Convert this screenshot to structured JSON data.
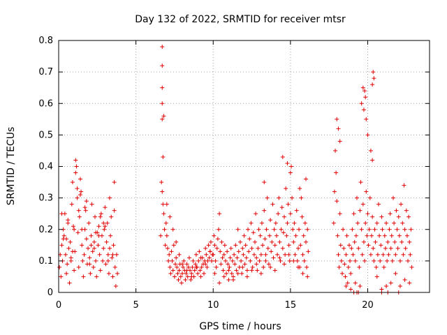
{
  "chart_data": {
    "type": "scatter",
    "title": "Day 132 of 2022, SRMTID for receiver mtsr",
    "xlabel": "GPS time / hours",
    "ylabel": "SRMTID / TECUs",
    "xlim": [
      0,
      24
    ],
    "ylim": [
      0,
      0.8
    ],
    "xticks": [
      0,
      5,
      10,
      15,
      20
    ],
    "yticks": [
      0,
      0.1,
      0.2,
      0.3,
      0.4,
      0.5,
      0.6,
      0.7,
      0.8
    ],
    "grid": true,
    "marker": "+",
    "color": "#e00000",
    "series": [
      {
        "name": "SRMTID",
        "x": [
          0.05,
          0.1,
          0.15,
          0.2,
          0.25,
          0.3,
          0.35,
          0.4,
          0.45,
          0.5,
          0.55,
          0.6,
          0.65,
          0.7,
          0.75,
          0.8,
          0.85,
          0.9,
          0.95,
          1.0,
          1.05,
          1.1,
          1.15,
          1.2,
          1.25,
          1.3,
          1.35,
          1.4,
          1.45,
          1.5,
          1.55,
          1.6,
          1.65,
          1.7,
          1.75,
          1.8,
          1.85,
          1.9,
          1.95,
          2.0,
          2.05,
          2.1,
          2.15,
          2.2,
          2.25,
          2.3,
          2.35,
          2.4,
          2.45,
          2.5,
          2.55,
          2.6,
          2.65,
          2.7,
          2.75,
          2.8,
          2.85,
          2.9,
          2.95,
          3.0,
          3.05,
          3.1,
          3.15,
          3.2,
          3.25,
          3.3,
          3.35,
          3.4,
          3.45,
          3.5,
          3.55,
          3.6,
          3.65,
          3.7,
          3.75,
          3.8,
          0.3,
          0.6,
          0.9,
          1.1,
          1.2,
          1.3,
          1.5,
          1.8,
          2.1,
          2.4,
          2.7,
          3.0,
          3.3,
          3.5,
          0.2,
          0.5,
          0.8,
          1.0,
          1.4,
          1.7,
          2.0,
          2.3,
          2.6,
          2.9,
          3.2,
          3.6,
          6.6,
          6.65,
          6.7,
          6.75,
          6.8,
          6.85,
          6.9,
          6.95,
          7.0,
          7.05,
          7.1,
          7.15,
          7.2,
          7.25,
          7.3,
          7.35,
          7.4,
          7.45,
          7.5,
          7.55,
          7.6,
          7.65,
          7.7,
          7.75,
          7.8,
          7.85,
          7.9,
          7.95,
          8.0,
          8.05,
          8.1,
          8.15,
          8.2,
          8.25,
          8.3,
          8.35,
          8.4,
          8.45,
          8.5,
          8.55,
          8.6,
          8.65,
          8.7,
          8.75,
          8.8,
          8.85,
          8.9,
          8.95,
          9.0,
          9.05,
          9.1,
          9.15,
          9.2,
          9.25,
          9.3,
          9.35,
          9.4,
          9.45,
          9.5,
          9.55,
          9.6,
          9.65,
          9.7,
          9.75,
          9.8,
          9.85,
          9.9,
          9.95,
          6.7,
          6.7,
          6.7,
          6.7,
          6.7,
          6.75,
          6.8,
          7.0,
          7.2,
          7.4,
          7.6,
          7.8,
          8.0,
          8.3,
          8.6,
          8.9,
          9.2,
          9.5,
          9.8,
          10.0,
          10.05,
          10.1,
          10.15,
          10.2,
          10.25,
          10.3,
          10.35,
          10.4,
          10.45,
          10.5,
          10.55,
          10.6,
          10.65,
          10.7,
          10.75,
          10.8,
          10.85,
          10.9,
          10.95,
          11.0,
          11.05,
          11.1,
          11.15,
          11.2,
          11.25,
          11.3,
          11.35,
          11.4,
          11.45,
          11.5,
          11.55,
          11.6,
          11.65,
          11.7,
          11.75,
          11.8,
          11.85,
          11.9,
          11.95,
          12.0,
          12.05,
          12.1,
          12.15,
          12.2,
          12.25,
          12.3,
          12.35,
          12.4,
          12.45,
          12.5,
          12.55,
          12.6,
          12.65,
          12.7,
          12.75,
          12.8,
          12.85,
          12.9,
          12.95,
          13.0,
          13.05,
          13.1,
          13.15,
          13.2,
          13.25,
          13.3,
          13.35,
          13.4,
          13.45,
          13.5,
          13.55,
          13.6,
          13.65,
          13.7,
          13.75,
          13.8,
          13.85,
          13.9,
          13.95,
          14.0,
          14.05,
          14.1,
          14.15,
          14.2,
          14.25,
          14.3,
          14.35,
          14.4,
          14.45,
          14.5,
          14.55,
          14.6,
          14.65,
          14.7,
          14.75,
          14.8,
          14.85,
          14.9,
          14.95,
          15.0,
          15.05,
          15.1,
          15.15,
          15.2,
          15.25,
          15.3,
          15.35,
          15.4,
          15.45,
          15.5,
          15.55,
          15.6,
          15.65,
          15.7,
          15.75,
          15.8,
          15.85,
          15.9,
          15.95,
          16.0,
          16.05,
          16.1,
          16.15,
          10.1,
          10.4,
          10.7,
          11.0,
          11.3,
          11.6,
          11.9,
          12.2,
          12.5,
          12.8,
          13.1,
          13.4,
          13.7,
          14.0,
          14.3,
          14.6,
          14.9,
          15.2,
          15.5,
          15.8,
          16.1,
          13.3,
          14.5,
          14.8,
          15.0,
          15.6,
          16.0,
          17.8,
          17.85,
          17.9,
          17.95,
          18.0,
          18.05,
          18.1,
          18.15,
          18.2,
          18.25,
          18.3,
          18.35,
          18.4,
          18.45,
          18.5,
          18.55,
          18.6,
          18.65,
          18.7,
          18.75,
          18.8,
          18.85,
          18.9,
          18.95,
          19.0,
          19.05,
          19.1,
          19.15,
          19.2,
          19.25,
          19.3,
          19.35,
          19.4,
          19.45,
          19.5,
          19.55,
          19.6,
          19.65,
          19.7,
          19.75,
          19.8,
          19.85,
          19.9,
          19.95,
          20.0,
          20.05,
          20.1,
          20.15,
          20.2,
          20.25,
          20.3,
          20.35,
          20.4,
          20.45,
          20.5,
          20.55,
          20.6,
          20.65,
          20.7,
          20.75,
          20.8,
          20.85,
          20.9,
          20.95,
          21.0,
          21.05,
          21.1,
          21.15,
          21.2,
          21.25,
          21.3,
          21.35,
          21.4,
          21.45,
          21.5,
          21.55,
          21.6,
          21.65,
          21.7,
          21.75,
          21.8,
          21.85,
          21.9,
          21.95,
          22.0,
          22.05,
          22.1,
          22.15,
          22.2,
          22.25,
          22.3,
          22.35,
          22.4,
          22.45,
          22.5,
          22.55,
          22.6,
          22.65,
          22.7,
          22.75,
          22.8,
          22.85,
          18.0,
          18.1,
          18.2,
          19.6,
          19.7,
          19.8,
          19.9,
          20.0,
          20.2,
          20.3,
          20.35,
          20.4,
          19.75,
          19.85,
          20.3,
          18.6,
          18.9,
          19.2,
          19.5,
          20.6,
          20.9,
          21.2,
          21.5,
          21.8,
          22.1,
          22.4,
          22.7,
          19.1,
          19.3,
          19.4,
          20.9,
          21.3,
          22.0
        ],
        "y": [
          0.08,
          0.12,
          0.05,
          0.15,
          0.1,
          0.2,
          0.18,
          0.25,
          0.12,
          0.06,
          0.09,
          0.22,
          0.14,
          0.03,
          0.16,
          0.11,
          0.28,
          0.35,
          0.21,
          0.07,
          0.13,
          0.42,
          0.4,
          0.3,
          0.19,
          0.08,
          0.24,
          0.36,
          0.32,
          0.15,
          0.1,
          0.05,
          0.12,
          0.2,
          0.26,
          0.17,
          0.09,
          0.14,
          0.22,
          0.11,
          0.06,
          0.18,
          0.28,
          0.13,
          0.08,
          0.16,
          0.24,
          0.1,
          0.05,
          0.19,
          0.15,
          0.21,
          0.12,
          0.07,
          0.25,
          0.18,
          0.1,
          0.14,
          0.2,
          0.27,
          0.09,
          0.16,
          0.22,
          0.12,
          0.06,
          0.3,
          0.18,
          0.24,
          0.11,
          0.05,
          0.15,
          0.35,
          0.08,
          0.02,
          0.12,
          0.06,
          0.17,
          0.23,
          0.13,
          0.38,
          0.33,
          0.26,
          0.2,
          0.29,
          0.15,
          0.19,
          0.24,
          0.21,
          0.14,
          0.12,
          0.25,
          0.17,
          0.1,
          0.2,
          0.31,
          0.27,
          0.09,
          0.14,
          0.18,
          0.22,
          0.1,
          0.26,
          0.18,
          0.35,
          0.32,
          0.28,
          0.25,
          0.2,
          0.15,
          0.22,
          0.18,
          0.14,
          0.1,
          0.12,
          0.08,
          0.06,
          0.13,
          0.1,
          0.07,
          0.15,
          0.05,
          0.09,
          0.11,
          0.08,
          0.06,
          0.04,
          0.07,
          0.09,
          0.05,
          0.03,
          0.06,
          0.08,
          0.1,
          0.07,
          0.04,
          0.06,
          0.09,
          0.05,
          0.08,
          0.11,
          0.07,
          0.04,
          0.06,
          0.08,
          0.1,
          0.05,
          0.07,
          0.09,
          0.12,
          0.08,
          0.06,
          0.1,
          0.13,
          0.07,
          0.05,
          0.08,
          0.11,
          0.09,
          0.06,
          0.1,
          0.14,
          0.12,
          0.08,
          0.1,
          0.15,
          0.11,
          0.13,
          0.16,
          0.1,
          0.12,
          0.78,
          0.72,
          0.65,
          0.6,
          0.55,
          0.43,
          0.56,
          0.28,
          0.24,
          0.2,
          0.16,
          0.12,
          0.09,
          0.07,
          0.05,
          0.08,
          0.11,
          0.09,
          0.13,
          0.12,
          0.18,
          0.15,
          0.1,
          0.08,
          0.14,
          0.17,
          0.2,
          0.25,
          0.13,
          0.09,
          0.16,
          0.11,
          0.07,
          0.12,
          0.15,
          0.1,
          0.06,
          0.13,
          0.09,
          0.04,
          0.08,
          0.11,
          0.14,
          0.06,
          0.1,
          0.05,
          0.12,
          0.09,
          0.15,
          0.07,
          0.11,
          0.2,
          0.13,
          0.08,
          0.16,
          0.1,
          0.06,
          0.14,
          0.12,
          0.18,
          0.09,
          0.15,
          0.11,
          0.07,
          0.2,
          0.13,
          0.17,
          0.1,
          0.22,
          0.14,
          0.08,
          0.19,
          0.12,
          0.16,
          0.25,
          0.11,
          0.07,
          0.14,
          0.2,
          0.1,
          0.18,
          0.12,
          0.22,
          0.15,
          0.08,
          0.26,
          0.17,
          0.12,
          0.2,
          0.3,
          0.14,
          0.09,
          0.18,
          0.23,
          0.13,
          0.16,
          0.28,
          0.11,
          0.2,
          0.15,
          0.22,
          0.18,
          0.12,
          0.25,
          0.3,
          0.16,
          0.1,
          0.2,
          0.27,
          0.14,
          0.19,
          0.24,
          0.12,
          0.33,
          0.18,
          0.22,
          0.28,
          0.15,
          0.1,
          0.25,
          0.4,
          0.3,
          0.2,
          0.16,
          0.22,
          0.12,
          0.18,
          0.26,
          0.1,
          0.14,
          0.2,
          0.08,
          0.15,
          0.3,
          0.24,
          0.12,
          0.18,
          0.1,
          0.22,
          0.16,
          0.08,
          0.2,
          0.13,
          0.06,
          0.03,
          0.05,
          0.07,
          0.04,
          0.06,
          0.08,
          0.05,
          0.07,
          0.09,
          0.06,
          0.1,
          0.08,
          0.07,
          0.11,
          0.09,
          0.12,
          0.1,
          0.08,
          0.06,
          0.05,
          0.35,
          0.43,
          0.41,
          0.38,
          0.33,
          0.36,
          0.22,
          0.32,
          0.45,
          0.38,
          0.29,
          0.18,
          0.12,
          0.08,
          0.25,
          0.15,
          0.1,
          0.06,
          0.2,
          0.14,
          0.09,
          0.05,
          0.12,
          0.18,
          0.03,
          0.08,
          0.15,
          0.1,
          0.06,
          0.14,
          0.2,
          0.12,
          0.25,
          0.16,
          0.1,
          0.18,
          0.3,
          0.22,
          0.14,
          0.08,
          0.26,
          0.35,
          0.2,
          0.12,
          0.28,
          0.16,
          0.1,
          0.22,
          0.32,
          0.18,
          0.25,
          0.15,
          0.2,
          0.3,
          0.12,
          0.18,
          0.24,
          0.14,
          0.1,
          0.2,
          0.16,
          0.08,
          0.22,
          0.12,
          0.28,
          0.18,
          0.1,
          0.15,
          0.24,
          0.2,
          0.12,
          0.08,
          0.18,
          0.14,
          0.22,
          0.1,
          0.16,
          0.12,
          0.2,
          0.25,
          0.14,
          0.18,
          0.1,
          0.3,
          0.22,
          0.16,
          0.12,
          0.26,
          0.2,
          0.14,
          0.24,
          0.18,
          0.1,
          0.28,
          0.16,
          0.22,
          0.12,
          0.34,
          0.2,
          0.14,
          0.26,
          0.18,
          0.1,
          0.24,
          0.16,
          0.12,
          0.2,
          0.08,
          0.55,
          0.52,
          0.48,
          0.6,
          0.65,
          0.64,
          0.55,
          0.5,
          0.45,
          0.66,
          0.7,
          0.68,
          0.58,
          0.62,
          0.42,
          0.02,
          0.01,
          0.03,
          0.02,
          0.05,
          0.01,
          0.02,
          0.03,
          0.06,
          0.02,
          0.04,
          0.03,
          0.0,
          0.0,
          0.0,
          0.0,
          0.0,
          0.0
        ]
      }
    ]
  }
}
